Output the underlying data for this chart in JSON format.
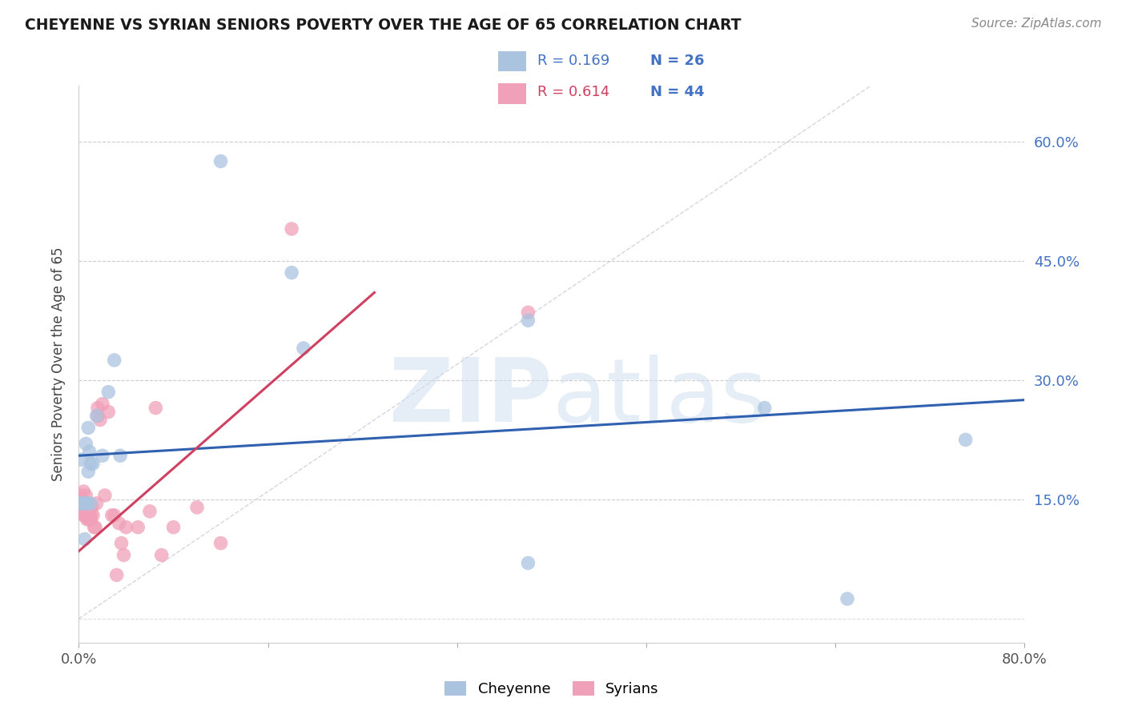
{
  "title": "CHEYENNE VS SYRIAN SENIORS POVERTY OVER THE AGE OF 65 CORRELATION CHART",
  "source": "Source: ZipAtlas.com",
  "ylabel": "Seniors Poverty Over the Age of 65",
  "xlim": [
    0,
    0.8
  ],
  "ylim": [
    -0.03,
    0.67
  ],
  "ytick_labels": [
    "15.0%",
    "30.0%",
    "45.0%",
    "60.0%"
  ],
  "ytick_values": [
    0.15,
    0.3,
    0.45,
    0.6
  ],
  "xtick_labels": [
    "0.0%",
    "",
    "",
    "",
    "",
    "80.0%"
  ],
  "xtick_values": [
    0.0,
    0.16,
    0.32,
    0.48,
    0.64,
    0.8
  ],
  "cheyenne_color": "#aac4e0",
  "syrian_color": "#f0a0b8",
  "cheyenne_line_color": "#3060b0",
  "syrian_line_color": "#d04060",
  "diagonal_color": "#c8ccd8",
  "R_cheyenne": 0.169,
  "N_cheyenne": 26,
  "R_syrian": 0.614,
  "N_syrian": 44,
  "watermark_zip": "ZIP",
  "watermark_atlas": "atlas",
  "legend_r_color_cheyenne": "#4472c4",
  "legend_n_color": "#4472c4",
  "legend_r_color_syrian": "#d04060",
  "cheyenne_x": [
    0.12,
    0.001,
    0.002,
    0.003,
    0.006,
    0.007,
    0.008,
    0.009,
    0.01,
    0.012,
    0.015,
    0.02,
    0.025,
    0.03,
    0.005,
    0.005,
    0.008,
    0.01,
    0.035,
    0.38,
    0.58,
    0.65,
    0.75,
    0.38,
    0.18,
    0.19
  ],
  "cheyenne_y": [
    0.575,
    0.145,
    0.2,
    0.145,
    0.22,
    0.145,
    0.185,
    0.21,
    0.195,
    0.195,
    0.255,
    0.205,
    0.285,
    0.325,
    0.1,
    0.145,
    0.24,
    0.145,
    0.205,
    0.375,
    0.265,
    0.025,
    0.225,
    0.07,
    0.435,
    0.34
  ],
  "syrian_x": [
    0.001,
    0.001,
    0.002,
    0.002,
    0.003,
    0.003,
    0.004,
    0.004,
    0.005,
    0.005,
    0.006,
    0.007,
    0.007,
    0.008,
    0.009,
    0.01,
    0.01,
    0.011,
    0.012,
    0.013,
    0.014,
    0.015,
    0.016,
    0.016,
    0.018,
    0.02,
    0.022,
    0.025,
    0.028,
    0.03,
    0.032,
    0.034,
    0.036,
    0.038,
    0.04,
    0.05,
    0.06,
    0.065,
    0.07,
    0.08,
    0.1,
    0.12,
    0.18,
    0.38
  ],
  "syrian_y": [
    0.145,
    0.155,
    0.135,
    0.145,
    0.135,
    0.145,
    0.13,
    0.16,
    0.13,
    0.14,
    0.155,
    0.125,
    0.14,
    0.125,
    0.13,
    0.125,
    0.13,
    0.14,
    0.13,
    0.115,
    0.115,
    0.145,
    0.265,
    0.255,
    0.25,
    0.27,
    0.155,
    0.26,
    0.13,
    0.13,
    0.055,
    0.12,
    0.095,
    0.08,
    0.115,
    0.115,
    0.135,
    0.265,
    0.08,
    0.115,
    0.14,
    0.095,
    0.49,
    0.385
  ],
  "cheyenne_trendline_x": [
    0.0,
    0.8
  ],
  "cheyenne_trendline_y": [
    0.205,
    0.275
  ],
  "syrian_trendline_x": [
    0.0,
    0.25
  ],
  "syrian_trendline_y": [
    0.085,
    0.41
  ]
}
